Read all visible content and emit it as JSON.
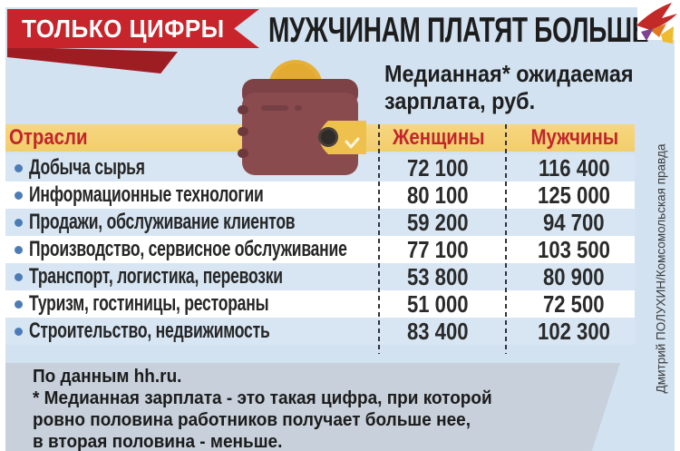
{
  "kicker": {
    "label": "ТОЛЬКО ЦИФРЫ"
  },
  "headline": "МУЖЧИНАМ ПЛАТЯТ БОЛЬШЕ",
  "subtitle": {
    "line1": "Медианная* ожидаемая",
    "line2": "зарплата, руб."
  },
  "table": {
    "col_industry": "Отрасли",
    "col_women": "Женщины",
    "col_men": "Мужчины",
    "rows": [
      {
        "industry": "Добыча сырья",
        "women": "72 100",
        "men": "116 400"
      },
      {
        "industry": "Информационные технологии",
        "women": "80 100",
        "men": "125 000"
      },
      {
        "industry": "Продажи, обслуживание клиентов",
        "women": "59 200",
        "men": "94 700"
      },
      {
        "industry": "Производство, сервисное обслуживание",
        "women": "77 100",
        "men": "103 500"
      },
      {
        "industry": "Транспорт, логистика, перевозки",
        "women": "53 800",
        "men": "80 900"
      },
      {
        "industry": "Туризм, гостиницы, рестораны",
        "women": "51 000",
        "men": "72 500"
      },
      {
        "industry": "Строительство, недвижимость",
        "women": "83 400",
        "men": "102 300"
      }
    ]
  },
  "footer": {
    "source": "По данным hh.ru.",
    "note_line1": "* Медианная зарплата - это такая цифра, при которой",
    "note_line2": "ровно половина работников получает больше нее,",
    "note_line3": "в вторая половина - меньше."
  },
  "credit": "Дмитрий ПОЛУХИН/Комсомольская правда",
  "colors": {
    "background": "#d3e2f1",
    "ribbon_red": "#c8242b",
    "ribbon_fold": "#9e1d22",
    "band_yellow": "#f5d379",
    "red_text": "#c2262c",
    "row_blue": "#d8e6f4",
    "row_white": "#ffffff",
    "bullet_blue": "#4c7cb8",
    "footer_grey": "#c7d0db",
    "wallet_maroon": "#8a4b4e",
    "coin_gold": "#e6b037"
  },
  "chart_data": {
    "type": "table",
    "title": "МУЖЧИНАМ ПЛАТЯТ БОЛЬШЕ",
    "subtitle": "Медианная* ожидаемая зарплата, руб.",
    "categories": [
      "Добыча сырья",
      "Информационные технологии",
      "Продажи, обслуживание клиентов",
      "Производство, сервисное обслуживание",
      "Транспорт, логистика, перевозки",
      "Туризм, гостиницы, рестораны",
      "Строительство, недвижимость"
    ],
    "series": [
      {
        "name": "Женщины",
        "values": [
          72100,
          80100,
          59200,
          77100,
          53800,
          51000,
          83400
        ]
      },
      {
        "name": "Мужчины",
        "values": [
          116400,
          125000,
          94700,
          103500,
          80900,
          72500,
          102300
        ]
      }
    ],
    "source": "По данным hh.ru."
  }
}
